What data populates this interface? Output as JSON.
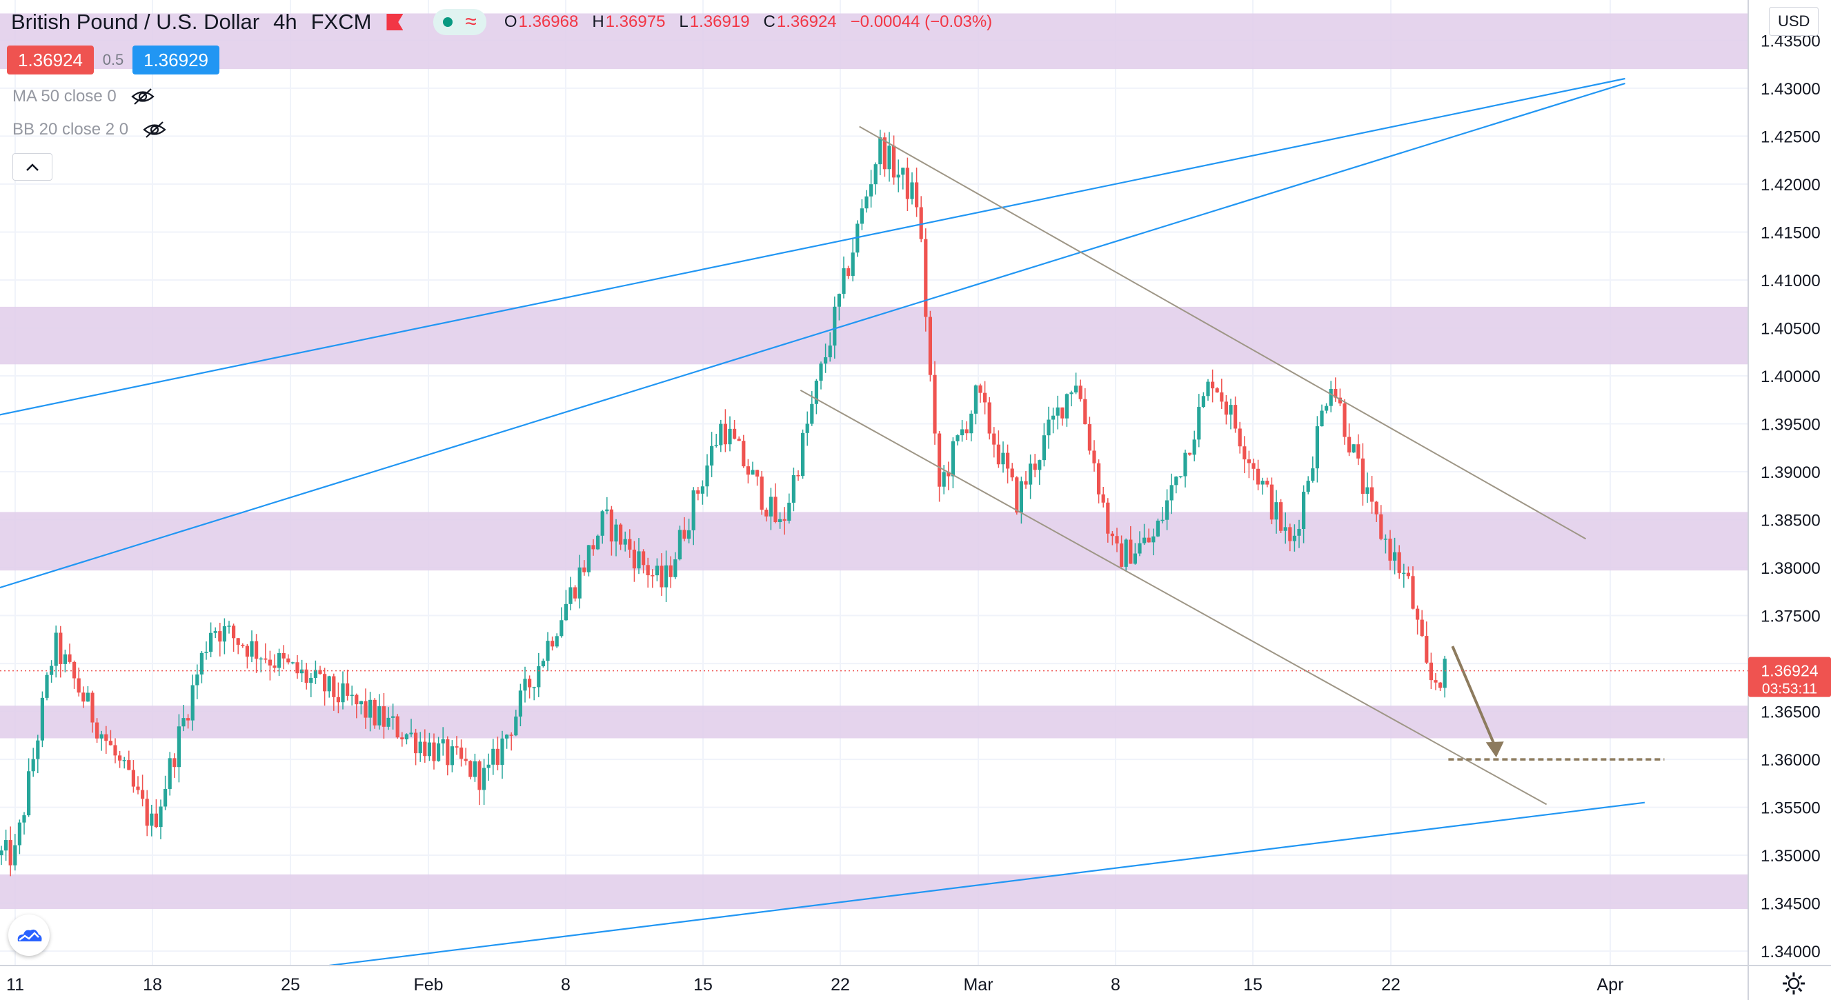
{
  "header": {
    "symbol": "British Pound / U.S. Dollar",
    "timeframe": "4h",
    "source": "FXCM",
    "ohlc": [
      {
        "k": "O",
        "v": "1.36968"
      },
      {
        "k": "H",
        "v": "1.36975"
      },
      {
        "k": "L",
        "v": "1.36919"
      },
      {
        "k": "C",
        "v": "1.36924"
      },
      {
        "k": "",
        "v": "−0.00044 (−0.03%)"
      }
    ]
  },
  "trade": {
    "sell": "1.36924",
    "spread": "0.5",
    "buy": "1.36929"
  },
  "indicators": [
    {
      "label": "MA 50 close 0",
      "icon": "eye-hidden-icon"
    },
    {
      "label": "BB 20 close 2 0",
      "icon": "eye-hidden-icon"
    }
  ],
  "currency": "USD",
  "last_price": {
    "price": "1.36924",
    "countdown": "03:53:11"
  },
  "colors": {
    "up": "#26a69a",
    "down": "#ef5350",
    "zone": "#e1cdea",
    "channel": "#2196f3",
    "trend": "#9e9686",
    "arrow": "#8d7b5e"
  },
  "price_axis": [
    "1.43500",
    "1.43000",
    "1.42500",
    "1.42000",
    "1.41500",
    "1.41000",
    "1.40500",
    "1.40000",
    "1.39500",
    "1.39000",
    "1.38500",
    "1.38000",
    "1.37500",
    "1.37000",
    "1.36500",
    "1.36000",
    "1.35500",
    "1.35000",
    "1.34500",
    "1.34000"
  ],
  "time_axis": [
    "11",
    "18",
    "25",
    "Feb",
    "8",
    "15",
    "22",
    "Mar",
    "8",
    "15",
    "22",
    "Apr"
  ],
  "chart_data": {
    "type": "candlestick",
    "title": "British Pound / U.S. Dollar, 4h, FXCM",
    "ylim": [
      1.3385,
      1.4392
    ],
    "zones": [
      [
        1.432,
        1.4378
      ],
      [
        1.4012,
        1.4072
      ],
      [
        1.3797,
        1.3858
      ],
      [
        1.3622,
        1.3656
      ],
      [
        1.3444,
        1.348
      ]
    ],
    "key_points": [
      {
        "x": "Jan 11",
        "y": 1.35
      },
      {
        "x": "Jan 13",
        "y": 1.372
      },
      {
        "x": "Jan 18",
        "y": 1.353
      },
      {
        "x": "Jan 21",
        "y": 1.374
      },
      {
        "x": "Feb 4",
        "y": 1.358
      },
      {
        "x": "Feb 10",
        "y": 1.385
      },
      {
        "x": "Feb 13",
        "y": 1.378
      },
      {
        "x": "Feb 16",
        "y": 1.395
      },
      {
        "x": "Feb 19",
        "y": 1.384
      },
      {
        "x": "Feb 22",
        "y": 1.408
      },
      {
        "x": "Feb 24",
        "y": 1.424
      },
      {
        "x": "Feb 26",
        "y": 1.418
      },
      {
        "x": "Feb 27",
        "y": 1.388
      },
      {
        "x": "Mar 1",
        "y": 1.398
      },
      {
        "x": "Mar 3",
        "y": 1.387
      },
      {
        "x": "Mar 6",
        "y": 1.4
      },
      {
        "x": "Mar 8",
        "y": 1.381
      },
      {
        "x": "Mar 10",
        "y": 1.383
      },
      {
        "x": "Mar 13",
        "y": 1.4
      },
      {
        "x": "Mar 17",
        "y": 1.382
      },
      {
        "x": "Mar 19",
        "y": 1.4
      },
      {
        "x": "Mar 21",
        "y": 1.386
      },
      {
        "x": "Mar 23",
        "y": 1.378
      },
      {
        "x": "Mar 24",
        "y": 1.368
      },
      {
        "x": "Mar 25",
        "y": 1.3692
      }
    ],
    "drawings": {
      "channel_upper": [
        [
          "Jan 8",
          1.395
        ],
        [
          "Apr 3",
          1.431
        ]
      ],
      "channel_mid": [
        [
          "Jan 8",
          1.3765
        ],
        [
          "Apr 3",
          1.4305
        ]
      ],
      "channel_lower": [
        [
          "Jan 27",
          1.3385
        ],
        [
          "Apr 4",
          1.3555
        ]
      ],
      "down_upper": [
        [
          "Feb 23",
          1.426
        ],
        [
          "Apr 1",
          1.383
        ]
      ],
      "down_lower": [
        [
          "Feb 20",
          1.3985
        ],
        [
          "Mar 30",
          1.3553
        ]
      ],
      "target_level": 1.36
    }
  }
}
